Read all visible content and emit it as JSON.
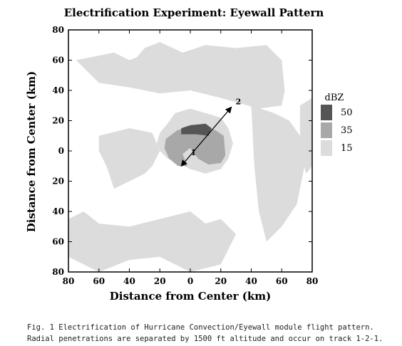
{
  "chart_data": {
    "type": "heatmap",
    "title": "Electrification Experiment: Eyewall Pattern",
    "xlabel": "Distance from Center (km)",
    "ylabel": "Distance from Center (km)",
    "xlim": [
      -80,
      80
    ],
    "ylim": [
      -80,
      80
    ],
    "x_ticks": [
      "80",
      "60",
      "40",
      "20",
      "0",
      "20",
      "40",
      "60",
      "80"
    ],
    "y_ticks": [
      "80",
      "60",
      "40",
      "20",
      "0",
      "20",
      "40",
      "60",
      "80"
    ],
    "legend": {
      "title": "dBZ",
      "levels": [
        {
          "label": "50",
          "color": "#555555"
        },
        {
          "label": "35",
          "color": "#a8a8a8"
        },
        {
          "label": "15",
          "color": "#dcdcdc"
        }
      ],
      "placement": "right"
    },
    "flight_track": {
      "points": [
        {
          "label": "1",
          "x": 2,
          "y": 2
        },
        {
          "label": "2",
          "x": 25,
          "y": 28
        }
      ],
      "ends": [
        [
          -6,
          -10
        ],
        [
          27,
          29
        ]
      ]
    },
    "reflectivity_regions": [
      {
        "level": "15",
        "x": [
          -75,
          -50,
          -40,
          -35,
          -30,
          -20,
          -5,
          10,
          30,
          50,
          60,
          62,
          60,
          45,
          20,
          0,
          -20,
          -40,
          -60,
          -75
        ],
        "y": [
          60,
          65,
          60,
          62,
          68,
          72,
          65,
          70,
          68,
          70,
          60,
          40,
          30,
          28,
          35,
          40,
          38,
          42,
          45,
          60
        ]
      },
      {
        "level": "15",
        "x": [
          -15,
          -10,
          0,
          10,
          20,
          25,
          28,
          25,
          20,
          10,
          0,
          -8,
          -15,
          -20,
          -22,
          -20
        ],
        "y": [
          18,
          25,
          28,
          25,
          22,
          15,
          5,
          -5,
          -12,
          -15,
          -12,
          -8,
          -5,
          0,
          5,
          12
        ]
      },
      {
        "level": "15",
        "x": [
          -60,
          -40,
          -25,
          -20,
          -25,
          -30,
          -40,
          -50,
          -55,
          -60
        ],
        "y": [
          10,
          15,
          12,
          0,
          -10,
          -15,
          -20,
          -25,
          -10,
          0
        ]
      },
      {
        "level": "15",
        "x": [
          -80,
          -70,
          -60,
          -40,
          -20,
          0,
          10,
          20,
          30,
          20,
          0,
          -20,
          -40,
          -60,
          -80
        ],
        "y": [
          -45,
          -40,
          -48,
          -50,
          -45,
          -40,
          -48,
          -45,
          -55,
          -75,
          -80,
          -70,
          -72,
          -80,
          -70
        ]
      },
      {
        "level": "15",
        "x": [
          40,
          55,
          65,
          72,
          75,
          70,
          60,
          50,
          45,
          42
        ],
        "y": [
          30,
          25,
          20,
          10,
          -10,
          -35,
          -50,
          -60,
          -40,
          -10
        ]
      },
      {
        "level": "15",
        "x": [
          72,
          80,
          80,
          76,
          72
        ],
        "y": [
          30,
          35,
          -10,
          -15,
          0
        ]
      },
      {
        "level": "35",
        "x": [
          -16,
          -8,
          4,
          16,
          22,
          23,
          20,
          12,
          5,
          0,
          -5,
          -2,
          -8,
          -14,
          -17
        ],
        "y": [
          8,
          14,
          15,
          14,
          10,
          -3,
          -8,
          -9,
          -5,
          2,
          -2,
          -10,
          -10,
          -5,
          2
        ]
      },
      {
        "level": "50",
        "x": [
          -6,
          0,
          10,
          14,
          12,
          4,
          -6
        ],
        "y": [
          15,
          17,
          18,
          15,
          10,
          11,
          11
        ]
      }
    ]
  },
  "caption": {
    "line1": "Fig. 1 Electrification of Hurricane Convection/Eyewall module flight pattern.",
    "line2": "Radial penetrations are separated by 1500 ft altitude and occur on track 1-2-1."
  }
}
